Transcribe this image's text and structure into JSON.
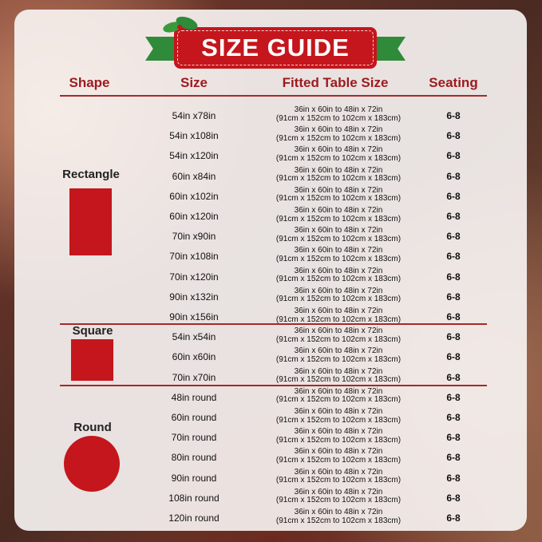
{
  "title": "SIZE GUIDE",
  "headers": {
    "shape": "Shape",
    "size": "Size",
    "fitted": "Fitted Table Size",
    "seating": "Seating"
  },
  "colors": {
    "accent_red": "#c4161c",
    "header_red": "#9c1a1f",
    "ribbon_green": "#2f8a3a"
  },
  "groups": [
    {
      "label": "Rectangle",
      "shape_icon": "rectangle",
      "rows": [
        {
          "size": "54in x78in",
          "fit1": "36in x 60in to 48in x 72in",
          "fit2": "(91cm x 152cm to 102cm x 183cm)",
          "seating": "6-8"
        },
        {
          "size": "54in x108in",
          "fit1": "36in x 60in to 48in x 72in",
          "fit2": "(91cm x 152cm to 102cm x 183cm)",
          "seating": "6-8"
        },
        {
          "size": "54in x120in",
          "fit1": "36in x 60in to 48in x 72in",
          "fit2": "(91cm x 152cm to 102cm x 183cm)",
          "seating": "6-8"
        },
        {
          "size": "60in x84in",
          "fit1": "36in x 60in to 48in x 72in",
          "fit2": "(91cm x 152cm to 102cm x 183cm)",
          "seating": "6-8"
        },
        {
          "size": "60in x102in",
          "fit1": "36in x 60in to 48in x 72in",
          "fit2": "(91cm x 152cm to 102cm x 183cm)",
          "seating": "6-8"
        },
        {
          "size": "60in x120in",
          "fit1": "36in x 60in to 48in x 72in",
          "fit2": "(91cm x 152cm to 102cm x 183cm)",
          "seating": "6-8"
        },
        {
          "size": "70in x90in",
          "fit1": "36in x 60in to 48in x 72in",
          "fit2": "(91cm x 152cm to 102cm x 183cm)",
          "seating": "6-8"
        },
        {
          "size": "70in x108in",
          "fit1": "36in x 60in to 48in x 72in",
          "fit2": "(91cm x 152cm to 102cm x 183cm)",
          "seating": "6-8"
        },
        {
          "size": "70in x120in",
          "fit1": "36in x 60in to 48in x 72in",
          "fit2": "(91cm x 152cm to 102cm x 183cm)",
          "seating": "6-8"
        },
        {
          "size": "90in x132in",
          "fit1": "36in x 60in to 48in x 72in",
          "fit2": "(91cm x 152cm to 102cm x 183cm)",
          "seating": "6-8"
        },
        {
          "size": "90in x156in",
          "fit1": "36in x 60in to 48in x 72in",
          "fit2": "(91cm x 152cm to 102cm x 183cm)",
          "seating": "6-8"
        }
      ]
    },
    {
      "label": "Square",
      "shape_icon": "square",
      "rows": [
        {
          "size": "54in x54in",
          "fit1": "36in x 60in to 48in x 72in",
          "fit2": "(91cm x 152cm to 102cm x 183cm)",
          "seating": "6-8"
        },
        {
          "size": "60in x60in",
          "fit1": "36in x 60in to 48in x 72in",
          "fit2": "(91cm x 152cm to 102cm x 183cm)",
          "seating": "6-8"
        },
        {
          "size": "70in x70in",
          "fit1": "36in x 60in to 48in x 72in",
          "fit2": "(91cm x 152cm to 102cm x 183cm)",
          "seating": "6-8"
        }
      ]
    },
    {
      "label": "Round",
      "shape_icon": "circle",
      "rows": [
        {
          "size": "48in round",
          "fit1": "36in x 60in to 48in x 72in",
          "fit2": "(91cm x 152cm to 102cm x 183cm)",
          "seating": "6-8"
        },
        {
          "size": "60in round",
          "fit1": "36in x 60in to 48in x 72in",
          "fit2": "(91cm x 152cm to 102cm x 183cm)",
          "seating": "6-8"
        },
        {
          "size": "70in round",
          "fit1": "36in x 60in to 48in x 72in",
          "fit2": "(91cm x 152cm to 102cm x 183cm)",
          "seating": "6-8"
        },
        {
          "size": "80in round",
          "fit1": "36in x 60in to 48in x 72in",
          "fit2": "(91cm x 152cm to 102cm x 183cm)",
          "seating": "6-8"
        },
        {
          "size": "90in round",
          "fit1": "36in x 60in to 48in x 72in",
          "fit2": "(91cm x 152cm to 102cm x 183cm)",
          "seating": "6-8"
        },
        {
          "size": "108in round",
          "fit1": "36in x 60in to 48in x 72in",
          "fit2": "(91cm x 152cm to 102cm x 183cm)",
          "seating": "6-8"
        },
        {
          "size": "120in round",
          "fit1": "36in x 60in to 48in x 72in",
          "fit2": "(91cm x 152cm to 102cm x 183cm)",
          "seating": "6-8"
        }
      ]
    }
  ]
}
